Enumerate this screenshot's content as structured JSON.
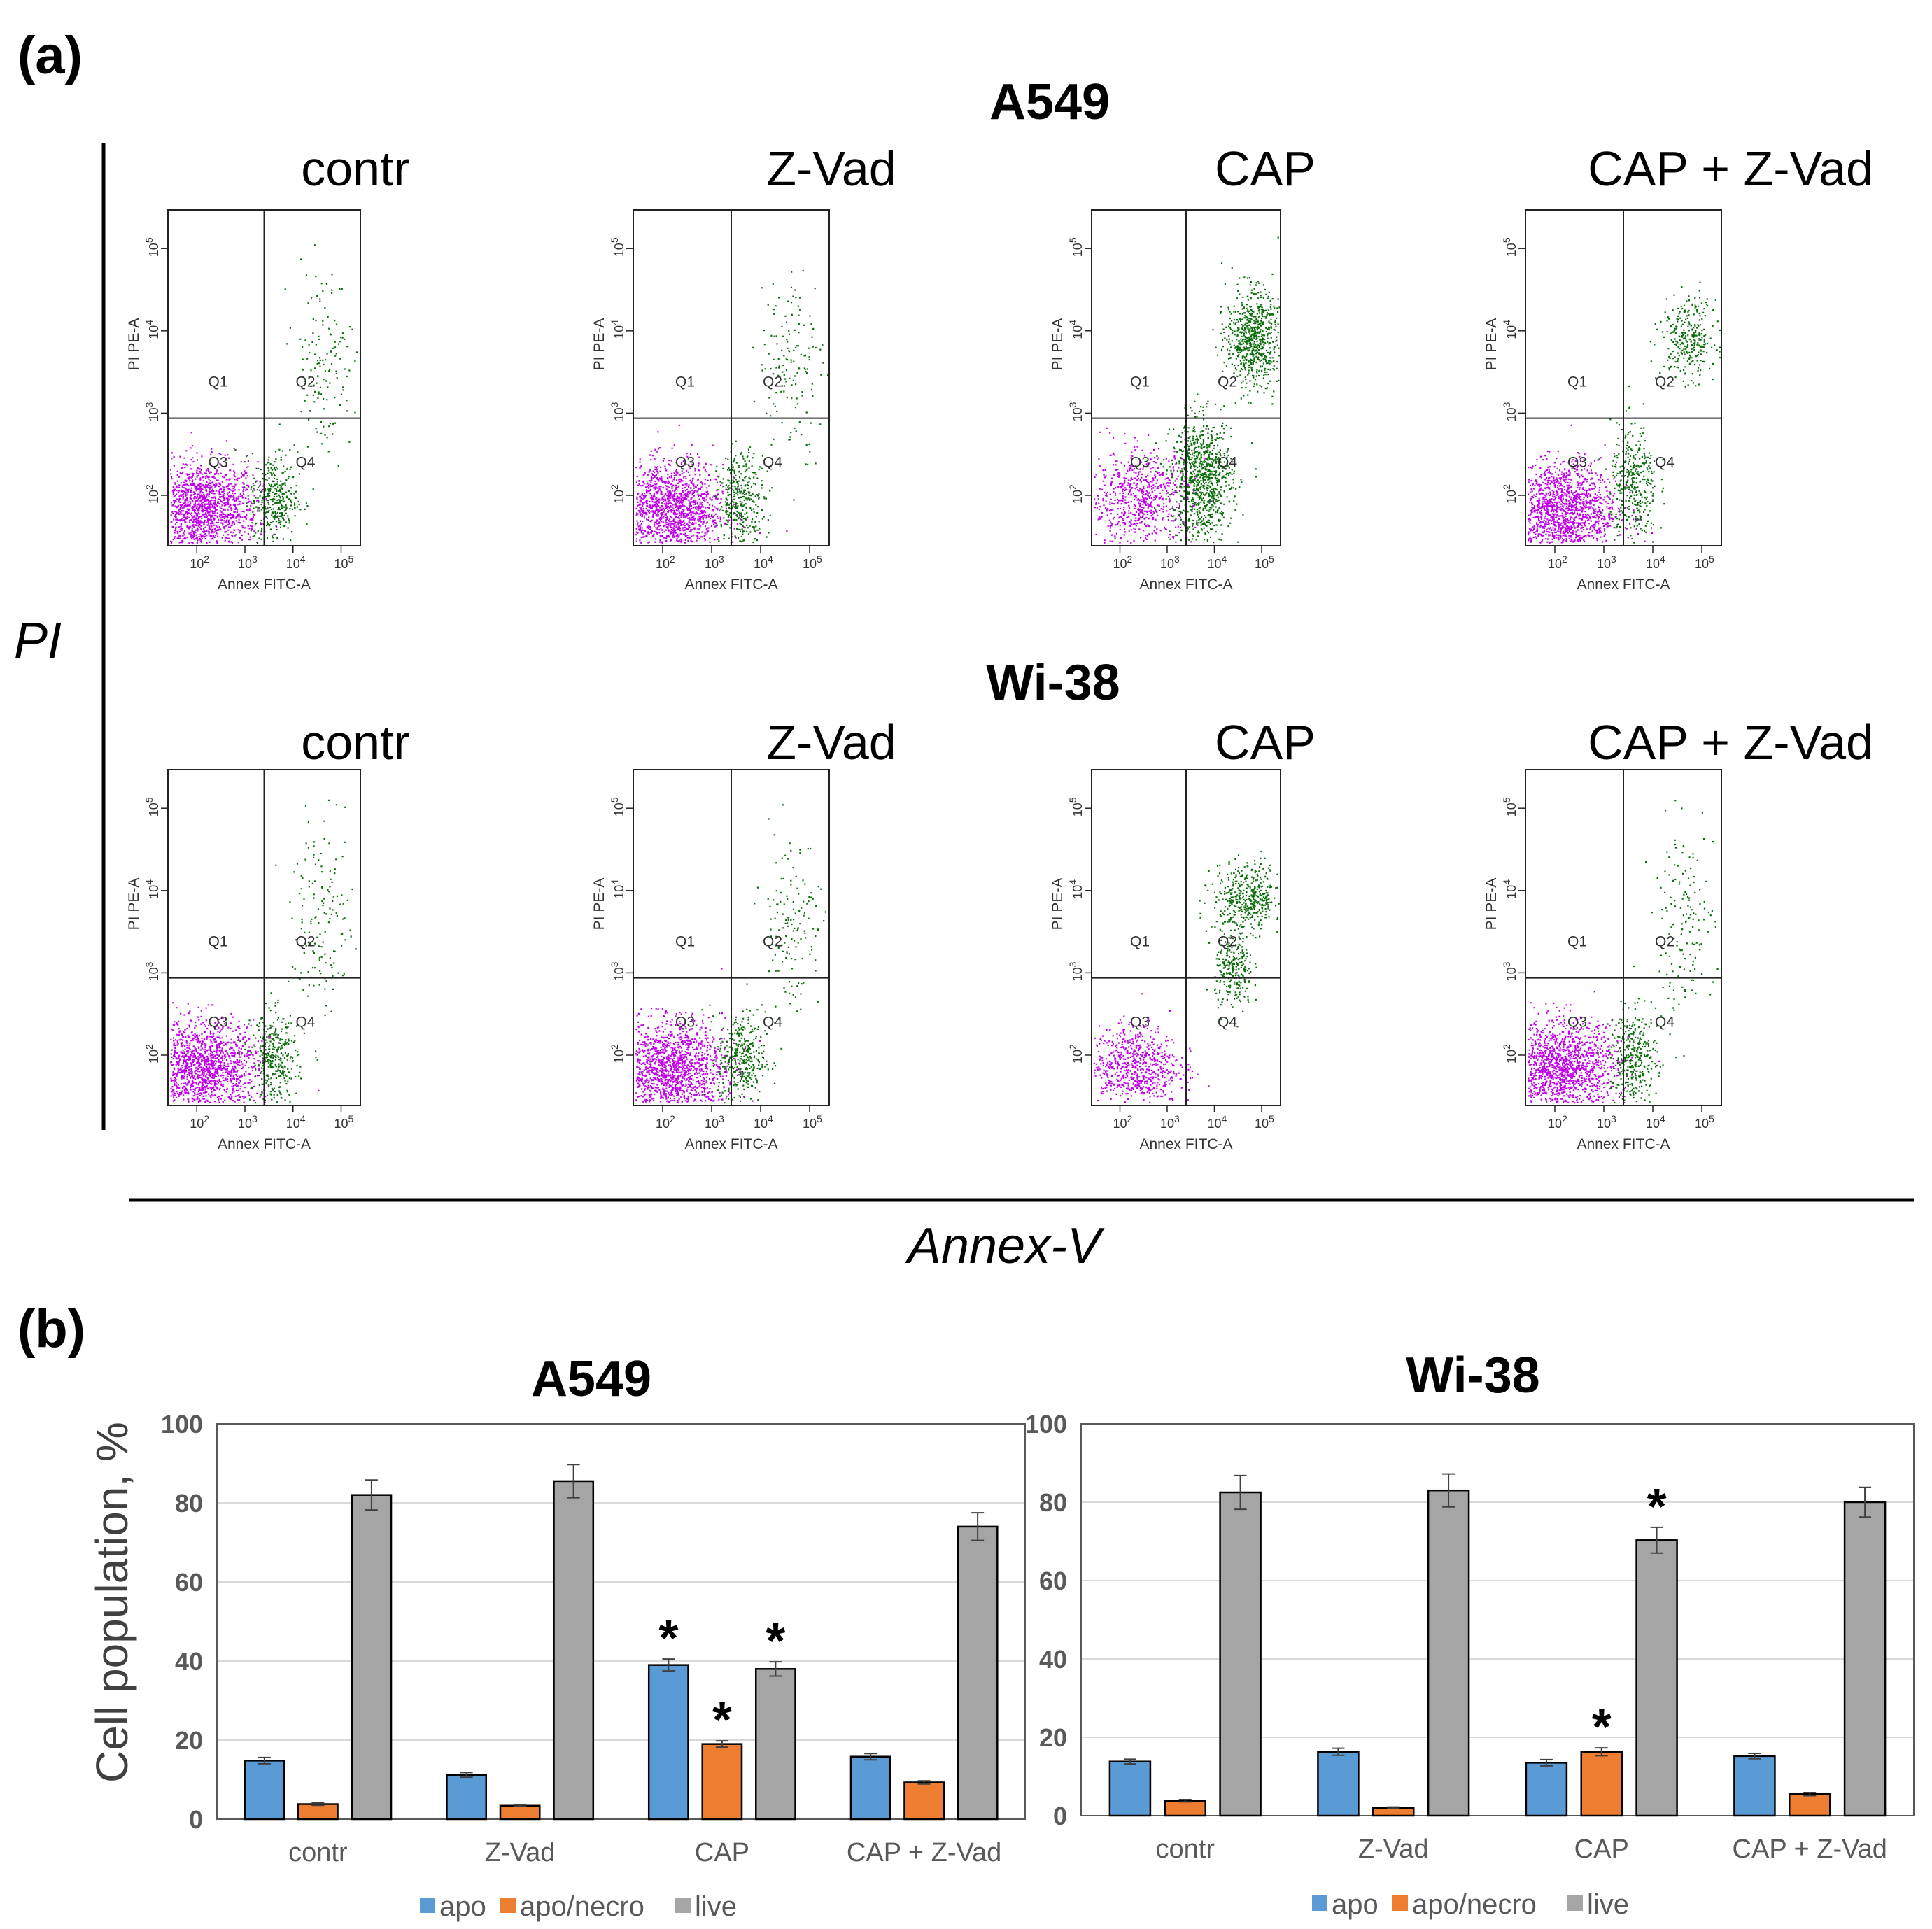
{
  "figure": {
    "panel_a_label": "(a)",
    "panel_b_label": "(b)",
    "flow_axis_y": "PI",
    "flow_axis_x": "Annex-V",
    "flow_x_label": "Annex FITC-A",
    "flow_y_label": "PI PE-A",
    "quadrants": [
      "Q1",
      "Q2",
      "Q3",
      "Q4"
    ],
    "decade_ticks": [
      "2",
      "3",
      "4",
      "5"
    ],
    "decade_base": "10",
    "colors": {
      "live": "#c000e8",
      "apoptotic": "#0b6e0b",
      "early": "#2fb52f"
    }
  },
  "flow_rows": [
    {
      "cell_line": "A549",
      "panels": [
        {
          "treatment": "contr",
          "distribution": "live-dominant"
        },
        {
          "treatment": "Z-Vad",
          "distribution": "live-dominant"
        },
        {
          "treatment": "CAP",
          "distribution": "apoptotic-shift"
        },
        {
          "treatment": "CAP + Z-Vad",
          "distribution": "live-with-late"
        }
      ]
    },
    {
      "cell_line": "Wi-38",
      "panels": [
        {
          "treatment": "contr",
          "distribution": "live-dominant"
        },
        {
          "treatment": "Z-Vad",
          "distribution": "live-dominant"
        },
        {
          "treatment": "CAP",
          "distribution": "late-shift"
        },
        {
          "treatment": "CAP + Z-Vad",
          "distribution": "live-dominant"
        }
      ]
    }
  ],
  "legend": {
    "apo": "apo",
    "apo_necro": "apo/necro",
    "live": "live"
  },
  "chart_data": [
    {
      "type": "bar",
      "title": "A549",
      "ylabel": "Cell population, %",
      "xlabel": "",
      "ylim": [
        0,
        100
      ],
      "yticks": [
        0,
        20,
        40,
        60,
        80,
        100
      ],
      "grid": true,
      "legend_position": "bottom",
      "categories": [
        "contr",
        "Z-Vad",
        "CAP",
        "CAP + Z-Vad"
      ],
      "series": [
        {
          "name": "apo",
          "color": "#5b9bd5",
          "values": [
            14.8,
            11.2,
            39.0,
            15.8
          ],
          "errors": [
            0.8,
            0.6,
            1.5,
            0.8
          ],
          "significant": [
            false,
            false,
            true,
            false
          ]
        },
        {
          "name": "apo/necro",
          "color": "#ed7d31",
          "values": [
            3.8,
            3.4,
            19.0,
            9.3
          ],
          "errors": [
            0.3,
            0.2,
            0.8,
            0.4
          ],
          "significant": [
            false,
            false,
            true,
            false
          ]
        },
        {
          "name": "live",
          "color": "#a5a5a5",
          "values": [
            82.0,
            85.5,
            38.0,
            74.0
          ],
          "errors": [
            3.8,
            4.2,
            1.8,
            3.5
          ],
          "significant": [
            false,
            false,
            true,
            false
          ]
        }
      ],
      "annotation": "*"
    },
    {
      "type": "bar",
      "title": "Wi-38",
      "ylabel": "",
      "xlabel": "",
      "ylim": [
        0,
        100
      ],
      "yticks": [
        0,
        20,
        40,
        60,
        80,
        100
      ],
      "grid": true,
      "legend_position": "bottom",
      "categories": [
        "contr",
        "Z-Vad",
        "CAP",
        "CAP + Z-Vad"
      ],
      "series": [
        {
          "name": "apo",
          "color": "#5b9bd5",
          "values": [
            13.8,
            16.3,
            13.5,
            15.2
          ],
          "errors": [
            0.6,
            0.9,
            0.8,
            0.7
          ],
          "significant": [
            false,
            false,
            false,
            false
          ]
        },
        {
          "name": "apo/necro",
          "color": "#ed7d31",
          "values": [
            3.8,
            2.0,
            16.3,
            5.5
          ],
          "errors": [
            0.3,
            0.2,
            1.0,
            0.4
          ],
          "significant": [
            false,
            false,
            true,
            false
          ]
        },
        {
          "name": "live",
          "color": "#a5a5a5",
          "values": [
            82.5,
            83.0,
            70.3,
            80.0
          ],
          "errors": [
            4.3,
            4.2,
            3.3,
            3.8
          ],
          "significant": [
            false,
            false,
            true,
            false
          ]
        }
      ],
      "annotation": "*"
    }
  ]
}
